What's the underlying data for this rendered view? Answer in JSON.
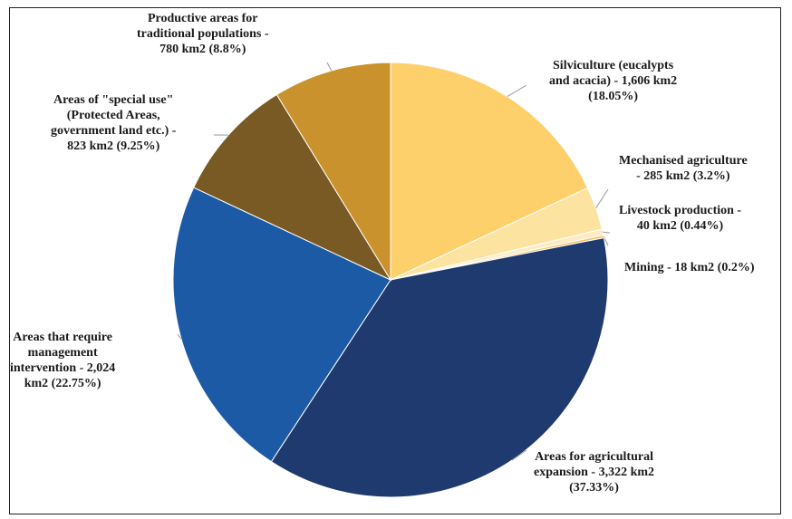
{
  "chart_data": {
    "type": "pie",
    "unit": "km2",
    "slices": [
      {
        "label": "Silviculture (eucalypts\nand acacia) - 1,606 km2\n(18.05%)",
        "category": "Silviculture (eucalypts and acacia)",
        "value": 1606,
        "percent": 18.05,
        "color": "#fdd06b"
      },
      {
        "label": "Mechanised agriculture\n- 285 km2 (3.2%)",
        "category": "Mechanised agriculture",
        "value": 285,
        "percent": 3.2,
        "color": "#fde3a0"
      },
      {
        "label": "Livestock production -\n40 km2 (0.44%)",
        "category": "Livestock production",
        "value": 40,
        "percent": 0.44,
        "color": "#fdebc3"
      },
      {
        "label": "Mining - 18 km2 (0.2%)",
        "category": "Mining",
        "value": 18,
        "percent": 0.2,
        "color": "#f5c46a"
      },
      {
        "label": "Areas for agricultural\nexpansion  - 3,322 km2\n(37.33%)",
        "category": "Areas for agricultural expansion",
        "value": 3322,
        "percent": 37.33,
        "color": "#1f3a6e"
      },
      {
        "label": "Areas that require\nmanagement\nintervention  - 2,024\nkm2 (22.75%)",
        "category": "Areas that require management intervention",
        "value": 2024,
        "percent": 22.75,
        "color": "#1c5aa6"
      },
      {
        "label": "Areas of \"special use\"\n(Protected Areas,\ngovernment land etc.) -\n823 km2 (9.25%)",
        "category": "Areas of \"special use\" (Protected Areas, government land etc.)",
        "value": 823,
        "percent": 9.25,
        "color": "#7a5a24"
      },
      {
        "label": "Productive areas for\ntraditional populations -\n780 km2 (8.8%)",
        "category": "Productive areas for traditional populations",
        "value": 780,
        "percent": 8.8,
        "color": "#c9922c"
      }
    ],
    "start_angle_deg": 0,
    "direction": "clockwise",
    "legend": "none",
    "title": ""
  }
}
